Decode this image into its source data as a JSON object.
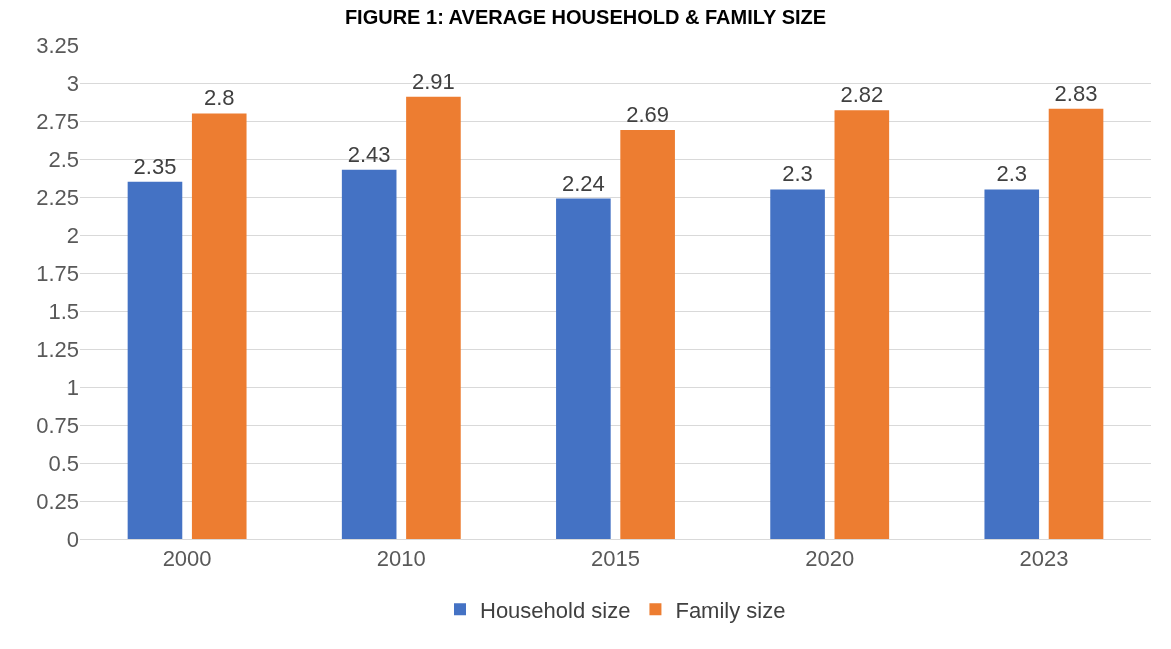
{
  "chart_data": {
    "type": "bar",
    "title": "FIGURE 1: AVERAGE HOUSEHOLD & FAMILY SIZE",
    "categories": [
      "2000",
      "2010",
      "2015",
      "2020",
      "2023"
    ],
    "series": [
      {
        "name": "Household size",
        "color": "#4472c4",
        "values": [
          2.35,
          2.43,
          2.24,
          2.3,
          2.3
        ]
      },
      {
        "name": "Family size",
        "color": "#ed7d31",
        "values": [
          2.8,
          2.91,
          2.69,
          2.82,
          2.83
        ]
      }
    ],
    "ylim": [
      0,
      3.25
    ],
    "yticks": [
      0,
      0.25,
      0.5,
      0.75,
      1,
      1.25,
      1.5,
      1.75,
      2,
      2.25,
      2.5,
      2.75,
      3,
      3.25
    ],
    "grid": "y",
    "legend": "bottom",
    "data_labels": true
  }
}
